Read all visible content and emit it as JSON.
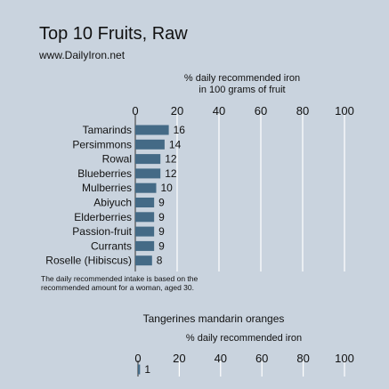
{
  "header": {
    "title": "Top 10 Fruits, Raw",
    "source": "www.DailyIron.net"
  },
  "footnote": {
    "line1": "The daily recommended intake is based on the",
    "line2": "recommended amount for a woman, aged 30."
  },
  "chart_data": [
    {
      "type": "bar",
      "orientation": "horizontal",
      "title": "Top 10 Fruits, Raw",
      "xlabel_line1": "% daily recommended iron",
      "xlabel_line2": "in 100 grams of fruit",
      "xlim": [
        0,
        100
      ],
      "ticks": [
        0,
        20,
        40,
        60,
        80,
        100
      ],
      "grid": true,
      "categories": [
        "Tamarinds",
        "Persimmons",
        "Rowal",
        "Blueberries",
        "Mulberries",
        "Abiyuch",
        "Elderberries",
        "Passion-fruit",
        "Currants",
        "Roselle (Hibiscus)"
      ],
      "values": [
        16,
        14,
        12,
        12,
        10,
        9,
        9,
        9,
        9,
        8
      ],
      "bar_color": "#446a86"
    },
    {
      "type": "bar",
      "orientation": "horizontal",
      "title": "Tangerines mandarin oranges",
      "xlabel": "% daily recommended iron",
      "xlim": [
        0,
        100
      ],
      "ticks": [
        0,
        20,
        40,
        60,
        80,
        100
      ],
      "grid": true,
      "categories": [
        ""
      ],
      "values": [
        1
      ],
      "bar_color": "#446a86"
    }
  ]
}
